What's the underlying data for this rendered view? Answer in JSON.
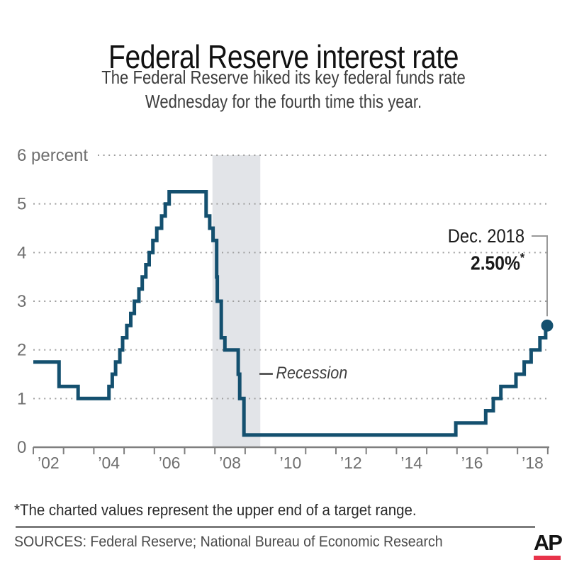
{
  "header": {
    "title": "Federal Reserve interest rate",
    "subtitle_line1": "The Federal Reserve hiked its key federal funds rate",
    "subtitle_line2": "Wednesday for the fourth time this year."
  },
  "chart_data": {
    "type": "line",
    "step": true,
    "title": "Federal Reserve interest rate",
    "ylabel": "percent",
    "xlim": [
      2002,
      2019.05
    ],
    "ylim": [
      0,
      6
    ],
    "grid": "dotted horizontal",
    "y_ticks": [
      {
        "value": 6,
        "label": "6 percent"
      },
      {
        "value": 5,
        "label": "5"
      },
      {
        "value": 4,
        "label": "4"
      },
      {
        "value": 3,
        "label": "3"
      },
      {
        "value": 2,
        "label": "2"
      },
      {
        "value": 1,
        "label": "1"
      },
      {
        "value": 0,
        "label": "0"
      }
    ],
    "x_tick_years": [
      2002,
      2003,
      2004,
      2005,
      2006,
      2007,
      2008,
      2009,
      2010,
      2011,
      2012,
      2013,
      2014,
      2015,
      2016,
      2017,
      2018,
      2019
    ],
    "x_labels": [
      {
        "x": 2002.5,
        "label": "’02"
      },
      {
        "x": 2004.5,
        "label": "’04"
      },
      {
        "x": 2006.5,
        "label": "’06"
      },
      {
        "x": 2008.5,
        "label": "’08"
      },
      {
        "x": 2010.5,
        "label": "’10"
      },
      {
        "x": 2012.5,
        "label": "’12"
      },
      {
        "x": 2014.5,
        "label": "’14"
      },
      {
        "x": 2016.5,
        "label": "’16"
      },
      {
        "x": 2018.5,
        "label": "’18"
      }
    ],
    "series": [
      {
        "name": "Federal funds rate (upper end of target range)",
        "points": [
          [
            2002.0,
            1.75
          ],
          [
            2002.85,
            1.25
          ],
          [
            2003.48,
            1.0
          ],
          [
            2004.5,
            1.25
          ],
          [
            2004.61,
            1.5
          ],
          [
            2004.72,
            1.75
          ],
          [
            2004.86,
            2.0
          ],
          [
            2004.95,
            2.25
          ],
          [
            2005.09,
            2.5
          ],
          [
            2005.22,
            2.75
          ],
          [
            2005.34,
            3.0
          ],
          [
            2005.49,
            3.25
          ],
          [
            2005.6,
            3.5
          ],
          [
            2005.72,
            3.75
          ],
          [
            2005.83,
            4.0
          ],
          [
            2005.95,
            4.25
          ],
          [
            2006.08,
            4.5
          ],
          [
            2006.24,
            4.75
          ],
          [
            2006.36,
            5.0
          ],
          [
            2006.49,
            5.25
          ],
          [
            2007.71,
            4.75
          ],
          [
            2007.83,
            4.5
          ],
          [
            2007.94,
            4.25
          ],
          [
            2008.06,
            3.5
          ],
          [
            2008.08,
            3.0
          ],
          [
            2008.21,
            2.25
          ],
          [
            2008.33,
            2.0
          ],
          [
            2008.77,
            1.5
          ],
          [
            2008.82,
            1.0
          ],
          [
            2008.96,
            0.25
          ],
          [
            2015.96,
            0.5
          ],
          [
            2016.95,
            0.75
          ],
          [
            2017.2,
            1.0
          ],
          [
            2017.45,
            1.25
          ],
          [
            2017.95,
            1.5
          ],
          [
            2018.22,
            1.75
          ],
          [
            2018.45,
            2.0
          ],
          [
            2018.74,
            2.25
          ],
          [
            2018.93,
            2.5
          ]
        ]
      }
    ],
    "end_point": {
      "x": 2018.98,
      "y": 2.5,
      "date_label": "Dec. 2018",
      "value_label": "2.50%",
      "marker": "*"
    },
    "recession_band": {
      "from": 2007.92,
      "to": 2009.5,
      "label": "Recession"
    },
    "colors": {
      "line": "#14506f",
      "band": "#e2e4e8",
      "grid": "#9e9e9e",
      "axis": "#7f7f7f",
      "tick_text": "#6f6f6f",
      "leader": "#999999"
    }
  },
  "footer": {
    "footnote": "*The charted values represent the upper end of a target range.",
    "sources": "SOURCES: Federal Reserve; National Bureau of Economic Research",
    "ap_logo": "AP",
    "ap_red": "#e8334a"
  }
}
